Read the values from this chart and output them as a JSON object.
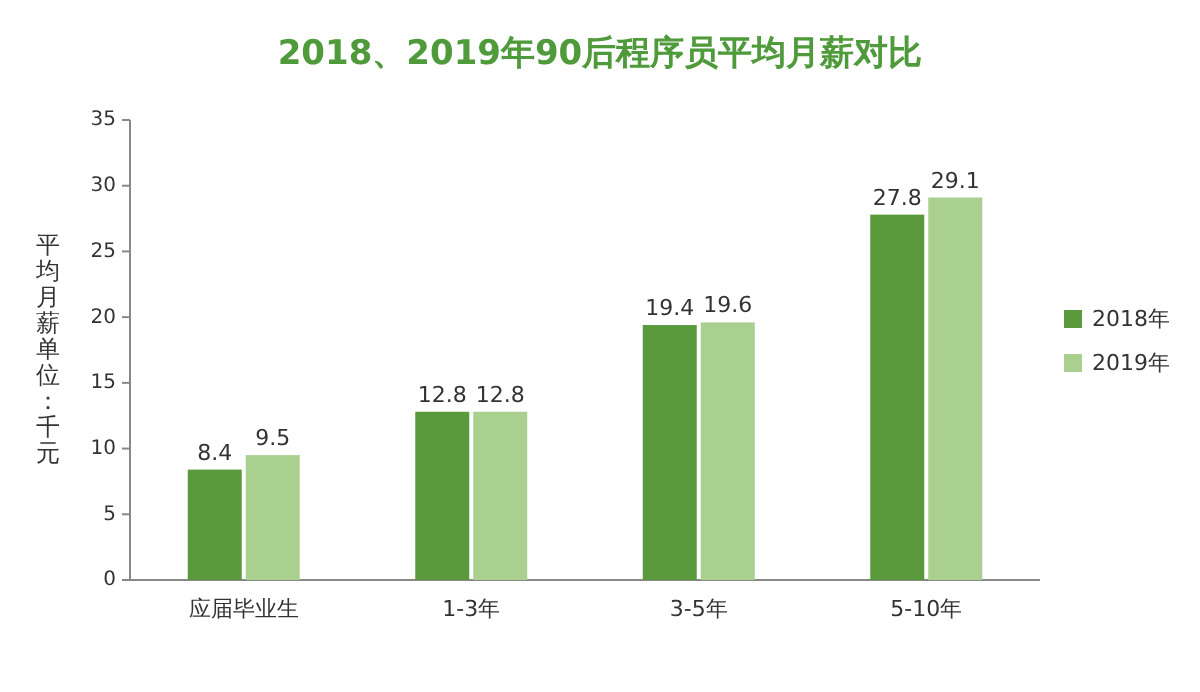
{
  "chart_data": {
    "type": "bar",
    "title": "2018、2019年90后程序员平均月薪对比",
    "ylabel": "平均月薪单位：千元",
    "categories": [
      "应届毕业生",
      "1-3年",
      "3-5年",
      "5-10年"
    ],
    "series": [
      {
        "name": "2018年",
        "color": "#5b9a3c",
        "values": [
          8.4,
          12.8,
          19.4,
          27.8
        ]
      },
      {
        "name": "2019年",
        "color": "#a9d08e",
        "values": [
          9.5,
          12.8,
          19.6,
          29.1
        ]
      }
    ],
    "ylim": [
      0,
      35
    ],
    "yticks": [
      0,
      5,
      10,
      15,
      20,
      25,
      30,
      35
    ],
    "data_labels": true,
    "legend": "right",
    "grid": false
  }
}
